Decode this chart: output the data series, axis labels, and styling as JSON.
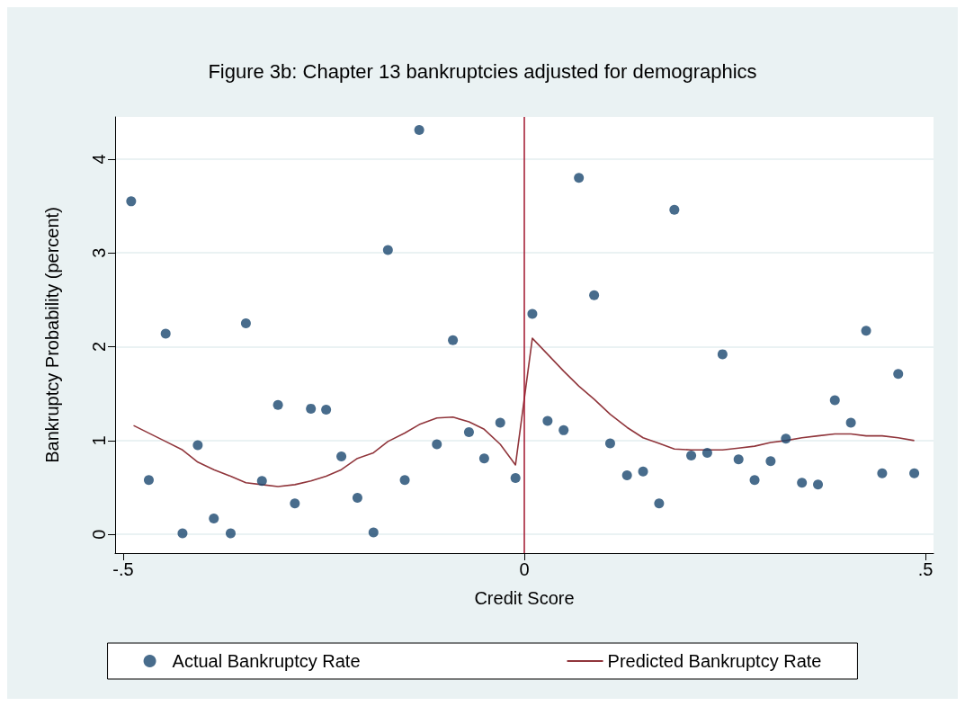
{
  "chart_data": {
    "type": "scatter",
    "title": "Figure 3b: Chapter 13 bankruptcies adjusted for demographics",
    "xlabel": "Credit Score",
    "ylabel": "Bankruptcy Probability (percent)",
    "xlim": [
      -0.51,
      0.51
    ],
    "xticks": [
      {
        "value": -0.5,
        "label": "-.5"
      },
      0,
      {
        "value": 0.5,
        "label": ".5"
      }
    ],
    "ylim": [
      -0.2,
      4.45
    ],
    "yticks": [
      0,
      1,
      2,
      3,
      4
    ],
    "grid": "y",
    "legend": "bottom",
    "marker": "circle",
    "ref_lines": [
      {
        "axis": "x",
        "value": 0,
        "color": "#a0142d"
      }
    ],
    "series": [
      {
        "name": "Actual Bankruptcy Rate",
        "color": "#1a476f",
        "x": [
          -0.49,
          -0.468,
          -0.447,
          -0.426,
          -0.407,
          -0.387,
          -0.366,
          -0.347,
          -0.327,
          -0.307,
          -0.286,
          -0.266,
          -0.247,
          -0.228,
          -0.208,
          -0.188,
          -0.17,
          -0.149,
          -0.131,
          -0.109,
          -0.089,
          -0.069,
          -0.05,
          -0.03,
          -0.011,
          0.01,
          0.029,
          0.049,
          0.068,
          0.087,
          0.107,
          0.128,
          0.148,
          0.168,
          0.187,
          0.208,
          0.228,
          0.247,
          0.267,
          0.287,
          0.307,
          0.326,
          0.346,
          0.366,
          0.387,
          0.407,
          0.426,
          0.446,
          0.466,
          0.486
        ],
        "values": [
          3.55,
          0.58,
          2.14,
          0.01,
          0.95,
          0.17,
          0.01,
          2.25,
          0.57,
          1.38,
          0.33,
          1.34,
          1.33,
          0.83,
          0.39,
          0.02,
          3.03,
          0.58,
          4.31,
          0.96,
          2.07,
          1.09,
          0.81,
          1.19,
          0.6,
          2.35,
          1.21,
          1.11,
          3.8,
          2.55,
          0.97,
          0.63,
          0.67,
          0.33,
          3.46,
          0.84,
          0.87,
          1.92,
          0.8,
          0.58,
          0.78,
          1.02,
          0.55,
          0.53,
          1.43,
          1.19,
          2.17,
          0.65,
          1.71,
          0.65
        ]
      },
      {
        "name": "Predicted Bankruptcy Rate",
        "type": "line",
        "color": "#90353b",
        "marker": "none",
        "x": [
          -0.487,
          -0.447,
          -0.426,
          -0.407,
          -0.387,
          -0.366,
          -0.347,
          -0.327,
          -0.307,
          -0.286,
          -0.266,
          -0.247,
          -0.228,
          -0.208,
          -0.188,
          -0.17,
          -0.149,
          -0.131,
          -0.109,
          -0.089,
          -0.069,
          -0.05,
          -0.03,
          -0.011,
          0.01,
          0.029,
          0.049,
          0.068,
          0.087,
          0.107,
          0.128,
          0.148,
          0.168,
          0.187,
          0.208,
          0.228,
          0.247,
          0.267,
          0.287,
          0.307,
          0.326,
          0.346,
          0.366,
          0.387,
          0.407,
          0.426,
          0.446,
          0.466,
          0.486
        ],
        "values": [
          1.16,
          0.99,
          0.9,
          0.77,
          0.69,
          0.62,
          0.55,
          0.53,
          0.51,
          0.53,
          0.57,
          0.62,
          0.69,
          0.81,
          0.87,
          0.99,
          1.08,
          1.17,
          1.24,
          1.25,
          1.2,
          1.12,
          0.96,
          0.74,
          2.09,
          1.92,
          1.74,
          1.58,
          1.44,
          1.28,
          1.14,
          1.03,
          0.97,
          0.91,
          0.9,
          0.9,
          0.9,
          0.92,
          0.94,
          0.98,
          1.0,
          1.03,
          1.05,
          1.07,
          1.07,
          1.05,
          1.05,
          1.03,
          1.0
        ]
      }
    ]
  }
}
